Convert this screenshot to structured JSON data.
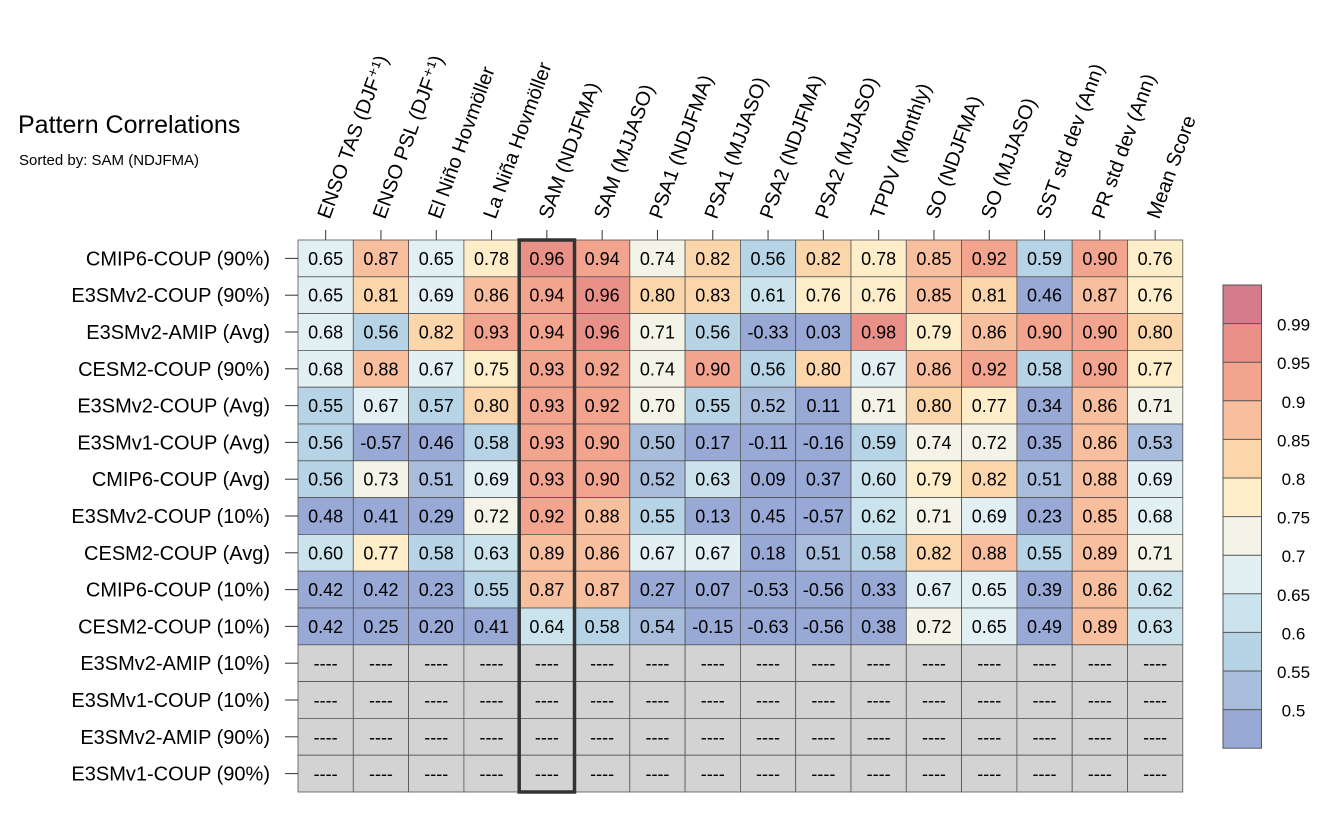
{
  "title": "Pattern Correlations",
  "subtitle": "Sorted by: SAM (NDJFMA)",
  "chart_data": {
    "type": "heatmap",
    "highlighted_column": "SAM (NDJFMA)",
    "columns": [
      "ENSO TAS (DJF⁺¹)",
      "ENSO PSL (DJF⁺¹)",
      "El Niño Hovmöller",
      "La Niña Hovmöller",
      "SAM (NDJFMA)",
      "SAM (MJJASO)",
      "PSA1 (NDJFMA)",
      "PSA1 (MJJASO)",
      "PSA2 (NDJFMA)",
      "PSA2 (MJJASO)",
      "TPDV (Monthly)",
      "SO (NDJFMA)",
      "SO (MJJASO)",
      "SST std dev (Ann)",
      "PR std dev (Ann)",
      "Mean Score"
    ],
    "rows": [
      "CMIP6-COUP (90%)",
      "E3SMv2-COUP (90%)",
      "E3SMv2-AMIP (Avg)",
      "CESM2-COUP (90%)",
      "E3SMv2-COUP (Avg)",
      "E3SMv1-COUP (Avg)",
      "CMIP6-COUP (Avg)",
      "E3SMv2-COUP (10%)",
      "CESM2-COUP (Avg)",
      "CMIP6-COUP (10%)",
      "CESM2-COUP (10%)",
      "E3SMv2-AMIP (10%)",
      "E3SMv1-COUP (10%)",
      "E3SMv2-AMIP (90%)",
      "E3SMv1-COUP (90%)"
    ],
    "values": [
      [
        "0.65",
        "0.87",
        "0.65",
        "0.78",
        "0.96",
        "0.94",
        "0.74",
        "0.82",
        "0.56",
        "0.82",
        "0.78",
        "0.85",
        "0.92",
        "0.59",
        "0.90",
        "0.76"
      ],
      [
        "0.65",
        "0.81",
        "0.69",
        "0.86",
        "0.94",
        "0.96",
        "0.80",
        "0.83",
        "0.61",
        "0.76",
        "0.76",
        "0.85",
        "0.81",
        "0.46",
        "0.87",
        "0.76"
      ],
      [
        "0.68",
        "0.56",
        "0.82",
        "0.93",
        "0.94",
        "0.96",
        "0.71",
        "0.56",
        "-0.33",
        "0.03",
        "0.98",
        "0.79",
        "0.86",
        "0.90",
        "0.90",
        "0.80"
      ],
      [
        "0.68",
        "0.88",
        "0.67",
        "0.75",
        "0.93",
        "0.92",
        "0.74",
        "0.90",
        "0.56",
        "0.80",
        "0.67",
        "0.86",
        "0.92",
        "0.58",
        "0.90",
        "0.77"
      ],
      [
        "0.55",
        "0.67",
        "0.57",
        "0.80",
        "0.93",
        "0.92",
        "0.70",
        "0.55",
        "0.52",
        "0.11",
        "0.71",
        "0.80",
        "0.77",
        "0.34",
        "0.86",
        "0.71"
      ],
      [
        "0.56",
        "-0.57",
        "0.46",
        "0.58",
        "0.93",
        "0.90",
        "0.50",
        "0.17",
        "-0.11",
        "-0.16",
        "0.59",
        "0.74",
        "0.72",
        "0.35",
        "0.86",
        "0.53"
      ],
      [
        "0.56",
        "0.73",
        "0.51",
        "0.69",
        "0.93",
        "0.90",
        "0.52",
        "0.63",
        "0.09",
        "0.37",
        "0.60",
        "0.79",
        "0.82",
        "0.51",
        "0.88",
        "0.69"
      ],
      [
        "0.48",
        "0.41",
        "0.29",
        "0.72",
        "0.92",
        "0.88",
        "0.55",
        "0.13",
        "0.45",
        "-0.57",
        "0.62",
        "0.71",
        "0.69",
        "0.23",
        "0.85",
        "0.68"
      ],
      [
        "0.60",
        "0.77",
        "0.58",
        "0.63",
        "0.89",
        "0.86",
        "0.67",
        "0.67",
        "0.18",
        "0.51",
        "0.58",
        "0.82",
        "0.88",
        "0.55",
        "0.89",
        "0.71"
      ],
      [
        "0.42",
        "0.42",
        "0.23",
        "0.55",
        "0.87",
        "0.87",
        "0.27",
        "0.07",
        "-0.53",
        "-0.56",
        "0.33",
        "0.67",
        "0.65",
        "0.39",
        "0.86",
        "0.62"
      ],
      [
        "0.42",
        "0.25",
        "0.20",
        "0.41",
        "0.64",
        "0.58",
        "0.54",
        "-0.15",
        "-0.63",
        "-0.56",
        "0.38",
        "0.72",
        "0.65",
        "0.49",
        "0.89",
        "0.63"
      ],
      [
        "----",
        "----",
        "----",
        "----",
        "----",
        "----",
        "----",
        "----",
        "----",
        "----",
        "----",
        "----",
        "----",
        "----",
        "----",
        "----"
      ],
      [
        "----",
        "----",
        "----",
        "----",
        "----",
        "----",
        "----",
        "----",
        "----",
        "----",
        "----",
        "----",
        "----",
        "----",
        "----",
        "----"
      ],
      [
        "----",
        "----",
        "----",
        "----",
        "----",
        "----",
        "----",
        "----",
        "----",
        "----",
        "----",
        "----",
        "----",
        "----",
        "----",
        "----"
      ],
      [
        "----",
        "----",
        "----",
        "----",
        "----",
        "----",
        "----",
        "----",
        "----",
        "----",
        "----",
        "----",
        "----",
        "----",
        "----",
        "----"
      ]
    ],
    "colorbar": {
      "labels": [
        "0.99",
        "0.95",
        "0.9",
        "0.85",
        "0.8",
        "0.75",
        "0.7",
        "0.65",
        "0.6",
        "0.55",
        "0.5"
      ],
      "bins": [
        {
          "min": 0.99,
          "color": "#d47b8c"
        },
        {
          "min": 0.95,
          "color": "#e99089"
        },
        {
          "min": 0.9,
          "color": "#f3a48e"
        },
        {
          "min": 0.85,
          "color": "#f8bf9e"
        },
        {
          "min": 0.8,
          "color": "#fbd6ab"
        },
        {
          "min": 0.75,
          "color": "#fdeec9"
        },
        {
          "min": 0.7,
          "color": "#f4f3e8"
        },
        {
          "min": 0.65,
          "color": "#e2f0f4"
        },
        {
          "min": 0.6,
          "color": "#cbe3ec"
        },
        {
          "min": 0.55,
          "color": "#b7d4e6"
        },
        {
          "min": 0.5,
          "color": "#a8bcdc"
        },
        {
          "min": -99,
          "color": "#99a9d6"
        }
      ],
      "missing_color": "#d3d3d3"
    }
  }
}
